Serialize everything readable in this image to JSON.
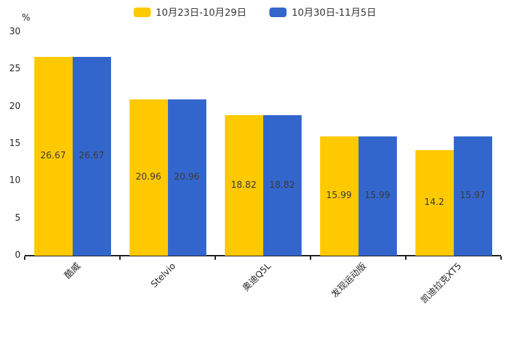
{
  "chart_data": {
    "type": "bar",
    "title": "",
    "categories": [
      "酷威",
      "Stelvio",
      "奥迪Q5L",
      "发现运动版",
      "凯迪拉克XT5"
    ],
    "series": [
      {
        "name": "10月23日-10月29日",
        "color": "#FFC900",
        "values": [
          26.67,
          20.96,
          18.82,
          15.99,
          14.2
        ]
      },
      {
        "name": "10月30日-11月5日",
        "color": "#3366CC",
        "values": [
          26.67,
          20.96,
          18.82,
          15.99,
          15.97
        ]
      }
    ],
    "value_labels": [
      [
        "26.67",
        "20.96",
        "18.82",
        "15.99",
        "14.2"
      ],
      [
        "26.67",
        "20.96",
        "18.82",
        "15.99",
        "15.97"
      ]
    ],
    "xlabel": "",
    "ylabel": "%",
    "ylim": [
      0,
      30
    ],
    "yticks": [
      "0",
      "5",
      "10",
      "15",
      "20",
      "25",
      "30"
    ],
    "legend_position": "top-center",
    "grid": false,
    "value_label_position": "inside-center",
    "category_label_rotation_deg": 45,
    "colors": {
      "series1": "#FFC900",
      "series2": "#3366CC",
      "axis_line": "#1a1a1a",
      "text": "#333333",
      "background": "#ffffff"
    }
  }
}
